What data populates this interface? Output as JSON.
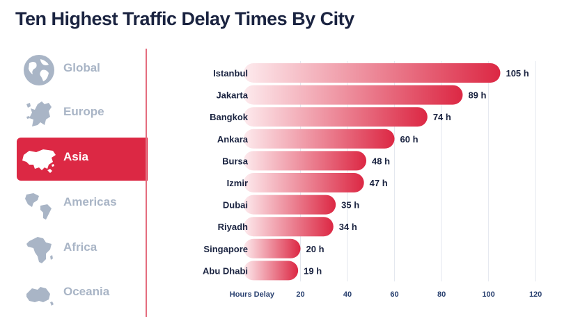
{
  "title": "Ten Highest Traffic Delay Times By City",
  "sidebar": {
    "items": [
      {
        "label": "Global",
        "icon": "globe-icon",
        "active": false
      },
      {
        "label": "Europe",
        "icon": "europe-map-icon",
        "active": false
      },
      {
        "label": "Asia",
        "icon": "asia-map-icon",
        "active": true
      },
      {
        "label": "Americas",
        "icon": "americas-map-icon",
        "active": false
      },
      {
        "label": "Africa",
        "icon": "africa-map-icon",
        "active": false
      },
      {
        "label": "Oceania",
        "icon": "oceania-map-icon",
        "active": false
      }
    ]
  },
  "colors": {
    "accent": "#dc2844",
    "bar_start": "#fdeaed",
    "bar_end": "#dc2844",
    "muted": "#a9b5c6",
    "axis_text": "#2a4170",
    "title": "#1a2340"
  },
  "chart_data": {
    "type": "bar",
    "orientation": "horizontal",
    "categories": [
      "Istanbul",
      "Jakarta",
      "Bangkok",
      "Ankara",
      "Bursa",
      "Izmir",
      "Dubai",
      "Riyadh",
      "Singapore",
      "Abu Dhabi"
    ],
    "values": [
      105,
      89,
      74,
      60,
      48,
      47,
      35,
      34,
      20,
      19
    ],
    "data_labels": [
      "105 h",
      "89 h",
      "74 h",
      "60 h",
      "48 h",
      "47 h",
      "35 h",
      "34 h",
      "20 h",
      "19 h"
    ],
    "xlabel": "Hours Delay",
    "xticks": [
      20,
      40,
      60,
      80,
      100,
      120
    ],
    "xlim": [
      0,
      120
    ],
    "grid": true
  }
}
